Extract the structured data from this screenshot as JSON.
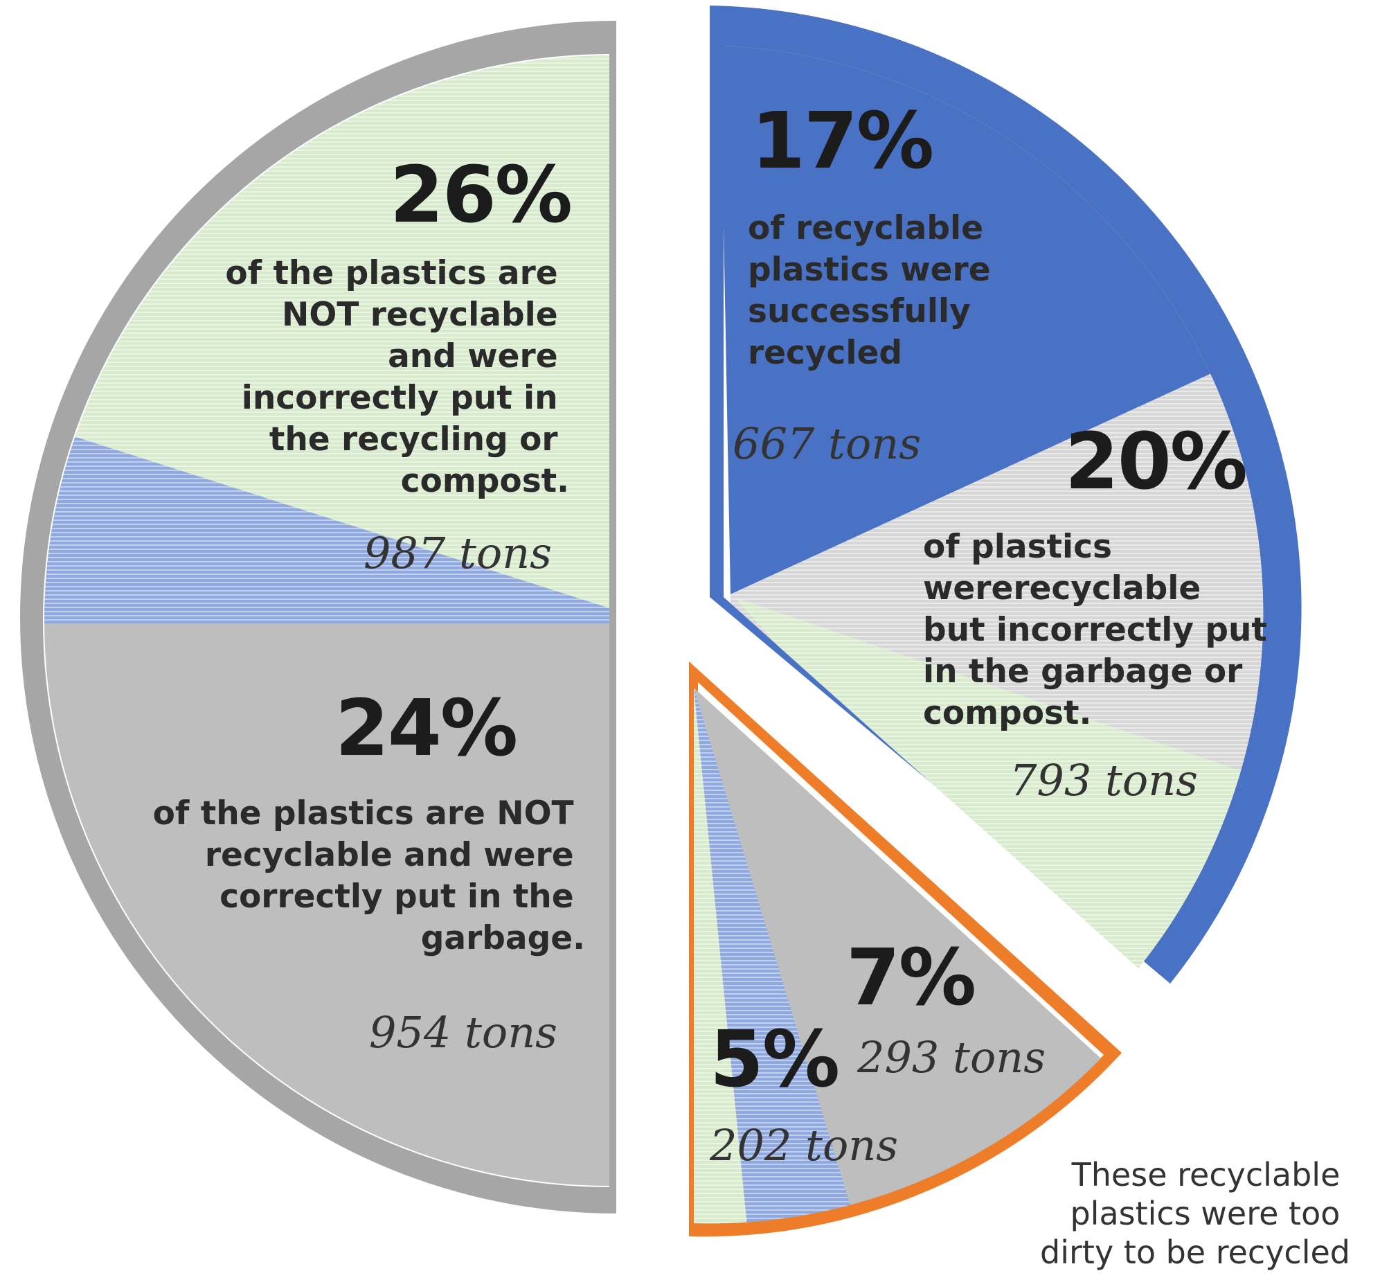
{
  "chart_data": {
    "type": "pie",
    "slices": [
      {
        "percent": 26,
        "percent_label": "26%",
        "description": [
          "of the plastics are",
          "NOT recyclable",
          "and were",
          "incorrectly put in",
          "the recycling or",
          "compost."
        ],
        "tons_label": "987 tons",
        "tons": 987,
        "fill": "#d8ebcc"
      },
      {
        "percent": 24,
        "percent_label": "24%",
        "description": [
          "of the plastics are NOT",
          "recyclable and were",
          "correctly put in the",
          "garbage."
        ],
        "tons_label": "954 tons",
        "tons": 954,
        "fill": "#bebebe"
      },
      {
        "percent": 17,
        "percent_label": "17%",
        "description": [
          "of recyclable",
          "plastics were",
          "successfully",
          "recycled"
        ],
        "tons_label": "667 tons",
        "tons": 667,
        "fill": "#4a72c4"
      },
      {
        "percent": 20,
        "percent_label": "20%",
        "description": [
          "of plastics",
          "wererecyclable",
          "but incorrectly put",
          "in the garbage or",
          "compost."
        ],
        "tons_label": "793 tons",
        "tons": 793,
        "fill": "#dcdcdc"
      },
      {
        "percent": 7,
        "percent_label": "7%",
        "description": [],
        "tons_label": "293 tons",
        "tons": 293,
        "fill": "#bebebe"
      },
      {
        "percent": 5,
        "percent_label": "5%",
        "description": [],
        "tons_label": "202 tons",
        "tons": 202,
        "fill": "#bebebe"
      }
    ],
    "note": [
      "These recyclable",
      "plastics were too",
      "dirty to be recycled"
    ],
    "colors": {
      "green": "#d8ebcc",
      "gray": "#bebebe",
      "light_gray": "#dcdcdc",
      "blue": "#4a72c4",
      "orange": "#ee7d2a",
      "rim_gray": "#a6a6a6"
    }
  }
}
